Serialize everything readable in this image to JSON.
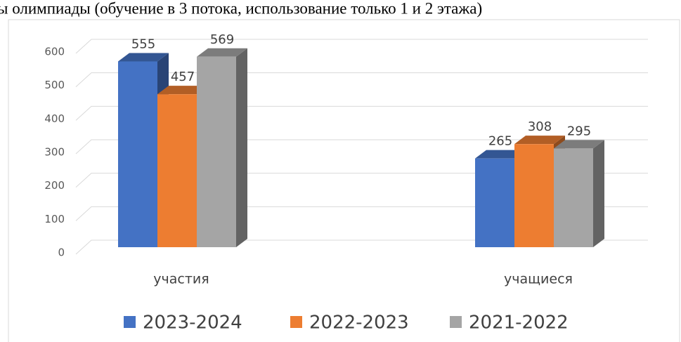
{
  "chart_data": {
    "type": "bar3d",
    "title": "ы олимпиады (обучение в 3 потока, использование только 1 и 2 этажа)",
    "categories": [
      "участия",
      "учащиеся"
    ],
    "series": [
      {
        "name": "2023-2024",
        "color": "#4472c4",
        "values": [
          555,
          265
        ]
      },
      {
        "name": "2022-2023",
        "color": "#ed7d31",
        "values": [
          457,
          308
        ]
      },
      {
        "name": "2021-2022",
        "color": "#a5a5a5",
        "values": [
          569,
          295
        ]
      }
    ],
    "ylim": [
      0,
      600
    ],
    "yticks": [
      0,
      100,
      200,
      300,
      400,
      500,
      600
    ],
    "grid": true,
    "legend": "bottom"
  }
}
